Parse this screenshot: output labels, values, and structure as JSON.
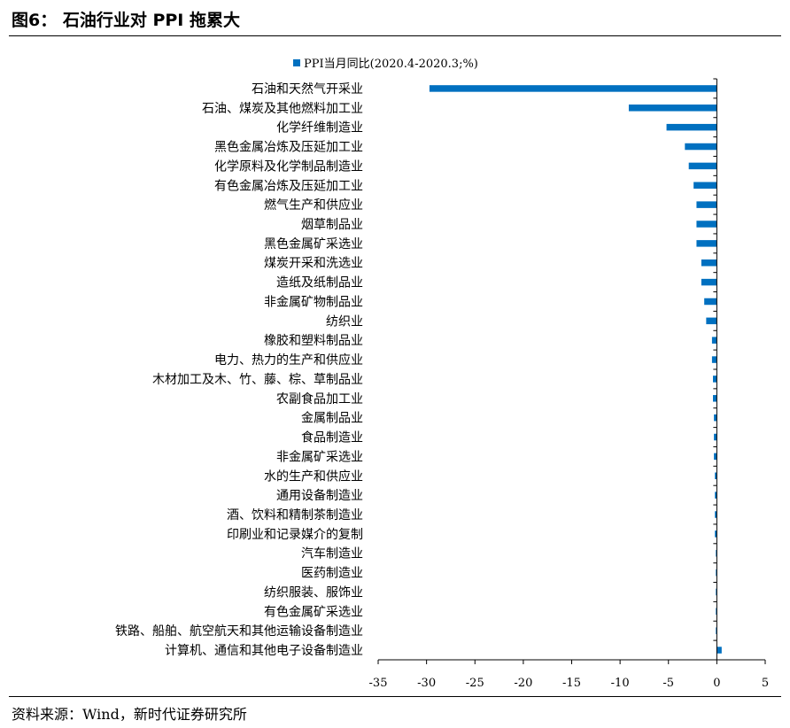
{
  "header": {
    "title": "图6： 石油行业对 PPI 拖累大"
  },
  "footer": {
    "source": "资料来源：Wind，新时代证券研究所"
  },
  "colors": {
    "bar": "#0070C0",
    "axis": "#000000",
    "text": "#000000"
  },
  "chart_data": {
    "type": "bar",
    "orientation": "horizontal",
    "title": "",
    "xlabel": "",
    "ylabel": "",
    "xlim": [
      -35,
      5
    ],
    "x_ticks": [
      -35,
      -30,
      -25,
      -20,
      -15,
      -10,
      -5,
      0,
      5
    ],
    "x_tick_labels": [
      "-35",
      "-30",
      "-25",
      "-20",
      "-15",
      "-10",
      "-5",
      "0",
      "5"
    ],
    "grid": false,
    "legend_position": "top",
    "categories": [
      "石油和天然气开采业",
      "石油、煤炭及其他燃料加工业",
      "化学纤维制造业",
      "黑色金属冶炼及压延加工业",
      "化学原料及化学制品制造业",
      "有色金属冶炼及压延加工业",
      "燃气生产和供应业",
      "烟草制品业",
      "黑色金属矿采选业",
      "煤炭开采和洗选业",
      "造纸及纸制品业",
      "非金属矿物制品业",
      "纺织业",
      "橡胶和塑料制品业",
      "电力、热力的生产和供应业",
      "木材加工及木、竹、藤、棕、草制品业",
      "农副食品加工业",
      "金属制品业",
      "食品制造业",
      "非金属矿采选业",
      "水的生产和供应业",
      "通用设备制造业",
      "酒、饮料和精制茶制造业",
      "印刷业和记录媒介的复制",
      "汽车制造业",
      "医药制造业",
      "纺织服装、服饰业",
      "有色金属矿采选业",
      "铁路、船舶、航空航天和其他运输设备制造业",
      "计算机、通信和其他电子设备制造业"
    ],
    "series": [
      {
        "name": "PPI当月同比(2020.4-2020.3;%)",
        "color": "#0070C0",
        "values": [
          -29.7,
          -9.1,
          -5.2,
          -3.3,
          -2.9,
          -2.4,
          -2.1,
          -2.1,
          -2.1,
          -1.6,
          -1.6,
          -1.3,
          -1.1,
          -0.5,
          -0.5,
          -0.4,
          -0.4,
          -0.3,
          -0.3,
          -0.3,
          -0.2,
          -0.2,
          -0.2,
          -0.2,
          -0.1,
          -0.1,
          -0.1,
          -0.1,
          -0.1,
          0.5
        ]
      }
    ]
  }
}
